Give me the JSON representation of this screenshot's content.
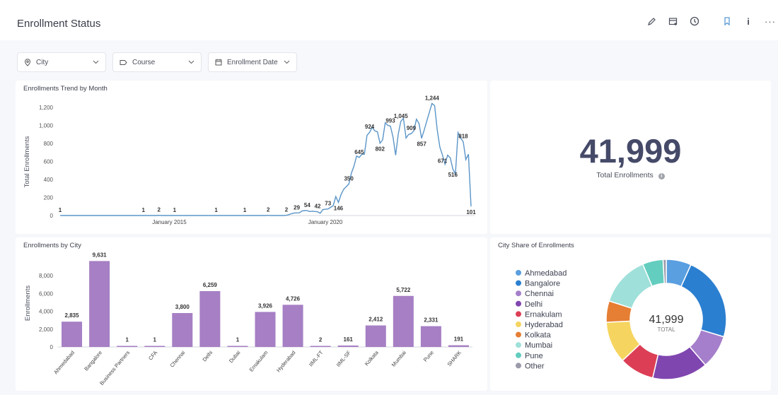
{
  "header": {
    "title": "Enrollment Status",
    "icons": [
      "pencil-icon",
      "subscribe-inbox-icon",
      "clock-icon",
      "bookmark-icon",
      "info-icon",
      "more-icon"
    ]
  },
  "filters": [
    {
      "label": "City",
      "icon": "location-pin-icon"
    },
    {
      "label": "Course",
      "icon": "tag-icon"
    },
    {
      "label": "Enrollment Date",
      "icon": "calendar-icon"
    }
  ],
  "colors": {
    "line": "#5b95c8",
    "bar": "#a67fc4",
    "kpi": "#454a68"
  },
  "trend": {
    "title": "Enrollments Trend by Month",
    "chart_data": {
      "type": "line",
      "ylabel": "Total Enrollments",
      "ylim": [
        0,
        1300
      ],
      "yticks": [
        "0",
        "200",
        "400",
        "600",
        "800",
        "1,000",
        "1,200"
      ],
      "ytick_values": [
        0,
        200,
        400,
        600,
        800,
        1000,
        1200
      ],
      "xticks": [
        {
          "label": "January 2015",
          "date": "2015-01"
        },
        {
          "label": "January 2020",
          "date": "2020-01"
        }
      ],
      "start": "2011-07",
      "end": "2024-09",
      "points": [
        [
          "2011-07",
          1,
          "1"
        ],
        [
          "2014-03",
          1,
          "1"
        ],
        [
          "2014-09",
          2,
          "2"
        ],
        [
          "2015-03",
          1,
          "1"
        ],
        [
          "2016-07",
          1,
          "1"
        ],
        [
          "2017-06",
          1,
          "1"
        ],
        [
          "2018-03",
          2,
          "2"
        ],
        [
          "2018-10",
          2,
          "2"
        ],
        [
          "2018-11",
          10
        ],
        [
          "2018-12",
          20
        ],
        [
          "2019-01",
          28
        ],
        [
          "2019-02",
          29,
          "29"
        ],
        [
          "2019-03",
          30
        ],
        [
          "2019-04",
          50
        ],
        [
          "2019-05",
          55
        ],
        [
          "2019-06",
          54,
          "54"
        ],
        [
          "2019-07",
          45
        ],
        [
          "2019-08",
          48
        ],
        [
          "2019-09",
          45
        ],
        [
          "2019-10",
          42,
          "42"
        ],
        [
          "2019-11",
          25
        ],
        [
          "2019-12",
          65
        ],
        [
          "2020-01",
          70
        ],
        [
          "2020-02",
          73,
          "73"
        ],
        [
          "2020-03",
          90
        ],
        [
          "2020-04",
          110
        ],
        [
          "2020-05",
          210
        ],
        [
          "2020-06",
          146,
          "146"
        ],
        [
          "2020-07",
          230
        ],
        [
          "2020-08",
          290
        ],
        [
          "2020-09",
          320
        ],
        [
          "2020-10",
          350,
          "350"
        ],
        [
          "2020-11",
          470
        ],
        [
          "2020-12",
          550
        ],
        [
          "2021-01",
          660
        ],
        [
          "2021-02",
          645,
          "645"
        ],
        [
          "2021-03",
          680
        ],
        [
          "2021-04",
          680
        ],
        [
          "2021-05",
          890
        ],
        [
          "2021-06",
          924,
          "924"
        ],
        [
          "2021-07",
          980
        ],
        [
          "2021-08",
          940
        ],
        [
          "2021-09",
          930
        ],
        [
          "2021-10",
          802,
          "802"
        ],
        [
          "2021-11",
          840
        ],
        [
          "2021-12",
          1030
        ],
        [
          "2022-01",
          1000
        ],
        [
          "2022-02",
          993,
          "993"
        ],
        [
          "2022-03",
          870
        ],
        [
          "2022-04",
          670
        ],
        [
          "2022-05",
          900
        ],
        [
          "2022-06",
          1045,
          "1,045"
        ],
        [
          "2022-07",
          1080
        ],
        [
          "2022-08",
          860
        ],
        [
          "2022-09",
          900
        ],
        [
          "2022-10",
          909,
          "909"
        ],
        [
          "2022-11",
          940
        ],
        [
          "2022-12",
          1070
        ],
        [
          "2023-01",
          1020
        ],
        [
          "2023-02",
          857,
          "857"
        ],
        [
          "2023-03",
          950
        ],
        [
          "2023-04",
          1050
        ],
        [
          "2023-05",
          1150
        ],
        [
          "2023-06",
          1244,
          "1,244"
        ],
        [
          "2023-07",
          1220
        ],
        [
          "2023-08",
          950
        ],
        [
          "2023-09",
          760
        ],
        [
          "2023-10",
          671,
          "671"
        ],
        [
          "2023-11",
          570
        ],
        [
          "2023-12",
          670
        ],
        [
          "2024-01",
          640
        ],
        [
          "2024-02",
          516,
          "516"
        ],
        [
          "2024-03",
          460
        ],
        [
          "2024-04",
          920
        ],
        [
          "2024-05",
          860
        ],
        [
          "2024-06",
          818,
          "818"
        ],
        [
          "2024-07",
          620
        ],
        [
          "2024-08",
          680
        ],
        [
          "2024-09",
          101,
          "101"
        ]
      ]
    }
  },
  "kpi": {
    "value": "41,999",
    "label": "Total Enrollments"
  },
  "by_city": {
    "title": "Enrollments by City",
    "chart_data": {
      "type": "bar",
      "ylabel": "Enrollments",
      "ylim": [
        0,
        10000
      ],
      "yticks": [
        "0",
        "2,000",
        "4,000",
        "6,000",
        "8,000"
      ],
      "ytick_values": [
        0,
        2000,
        4000,
        6000,
        8000
      ],
      "categories": [
        "Ahmedabad",
        "Bangalore",
        "Business Partners",
        "CFA",
        "Chennai",
        "Delhi",
        "Dubai",
        "Ernakulam",
        "Hyderabad",
        "IIML-FT",
        "IIML-SF",
        "Kolkata",
        "Mumbai",
        "Pune",
        "SHARK"
      ],
      "values": [
        2835,
        9631,
        1,
        1,
        3800,
        6259,
        1,
        3926,
        4726,
        2,
        161,
        2412,
        5722,
        2331,
        191
      ],
      "labels": [
        "2,835",
        "9,631",
        "1",
        "1",
        "3,800",
        "6,259",
        "1",
        "3,926",
        "4,726",
        "2",
        "161",
        "2,412",
        "5,722",
        "2,331",
        "191"
      ]
    }
  },
  "share": {
    "title": "City Share of Enrollments",
    "center_value": "41,999",
    "center_label": "TOTAL",
    "chart_data": {
      "type": "pie",
      "categories": [
        "Ahmedabad",
        "Bangalore",
        "Chennai",
        "Delhi",
        "Ernakulam",
        "Hyderabad",
        "Kolkata",
        "Mumbai",
        "Pune",
        "Other"
      ],
      "values": [
        2835,
        9631,
        3800,
        6259,
        3926,
        4726,
        2412,
        5722,
        2331,
        357
      ],
      "colors": [
        "#5a9fe0",
        "#2b7fd0",
        "#a57fcb",
        "#8046b0",
        "#dc3f55",
        "#f5d560",
        "#e67e33",
        "#9fe0da",
        "#63cdbf",
        "#9a9aaa"
      ],
      "legend": "left"
    }
  }
}
